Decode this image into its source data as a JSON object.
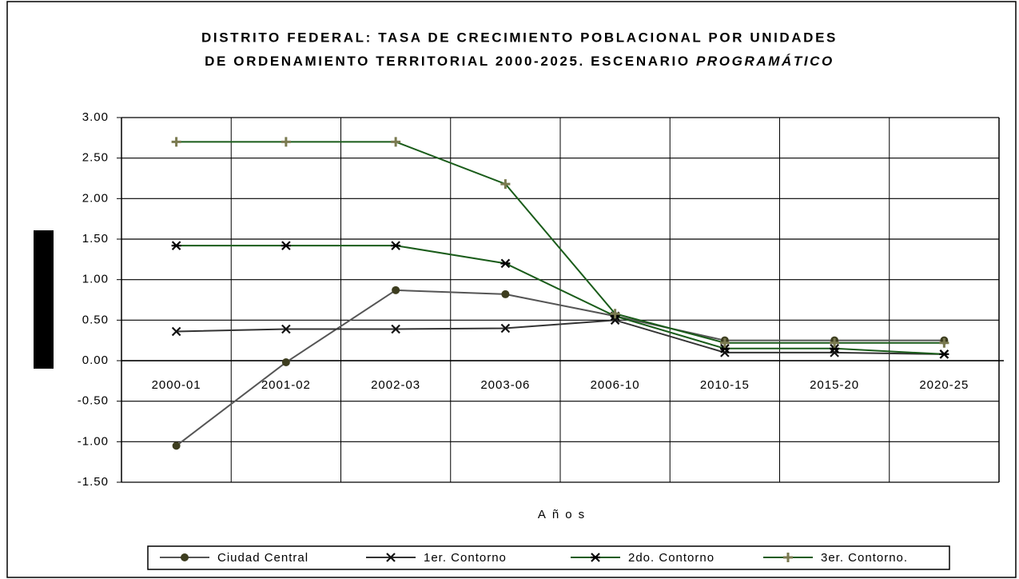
{
  "chart_data": {
    "type": "line",
    "title": [
      "DISTRITO FEDERAL: TASA DE CRECIMIENTO POBLACIONAL POR UNIDADES",
      "DE ORDENAMIENTO TERRITORIAL  2000-2025.   ESCENARIO",
      "PROGRAMÁTICO"
    ],
    "x_label": "Años",
    "categories": [
      "2000-01",
      "2001-02",
      "2002-03",
      "2003-06",
      "2006-10",
      "2010-15",
      "2015-20",
      "2020-25"
    ],
    "ylim": [
      -1.5,
      3
    ],
    "yticks": [
      {
        "value": -1.5,
        "label": "-1.50"
      },
      {
        "value": -1,
        "label": "-1.00"
      },
      {
        "value": -0.5,
        "label": "-0.50"
      },
      {
        "value": 0,
        "label": "0.00"
      },
      {
        "value": 0.5,
        "label": "0.50"
      },
      {
        "value": 1,
        "label": "1.00"
      },
      {
        "value": 1.5,
        "label": "1.50"
      },
      {
        "value": 2,
        "label": "2.00"
      },
      {
        "value": 2.5,
        "label": "2.50"
      },
      {
        "value": 3,
        "label": "3.00"
      }
    ],
    "grid": true,
    "legend": "bottom",
    "series": [
      {
        "name": "Ciudad Central",
        "color": "#555555",
        "marker": "circle",
        "marker_color": "#3d3d1f",
        "values": [
          -1.05,
          -0.02,
          0.87,
          0.82,
          0.55,
          0.25,
          0.25,
          0.25
        ]
      },
      {
        "name": "1er. Contorno",
        "color": "#333333",
        "marker": "x",
        "marker_color": "#111111",
        "values": [
          0.36,
          0.39,
          0.39,
          0.4,
          0.5,
          0.1,
          0.1,
          0.08
        ]
      },
      {
        "name": "2do. Contorno",
        "color": "#1a5c1a",
        "marker": "asterisk",
        "marker_color": "#000000",
        "values": [
          1.42,
          1.42,
          1.42,
          1.2,
          0.55,
          0.15,
          0.15,
          0.08
        ]
      },
      {
        "name": "3er. Contorno.",
        "color": "#1a5c1a",
        "marker": "plus",
        "marker_color": "#7a7a50",
        "values": [
          2.7,
          2.7,
          2.7,
          2.18,
          0.58,
          0.22,
          0.22,
          0.22
        ]
      }
    ]
  }
}
